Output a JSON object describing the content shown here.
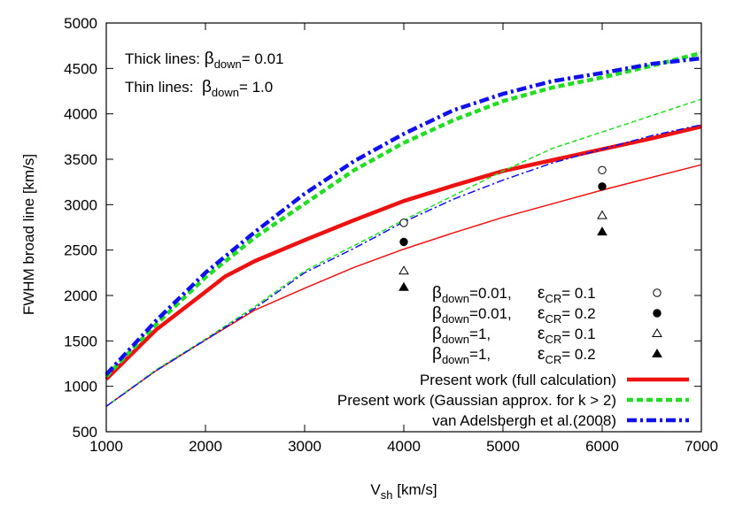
{
  "chart_data": {
    "type": "line",
    "xlabel_main": "V",
    "xlabel_sub": "sh",
    "xlabel_rest": " [km/s]",
    "ylabel": "FWHM broad line  [km/s]",
    "xlim": [
      1000,
      7000
    ],
    "ylim": [
      500,
      5000
    ],
    "xticks": [
      "1000",
      "2000",
      "3000",
      "4000",
      "5000",
      "6000",
      "7000"
    ],
    "yticks": [
      "500",
      "1000",
      "1500",
      "2000",
      "2500",
      "3000",
      "3500",
      "4000",
      "4500",
      "5000"
    ],
    "grid": false,
    "legend_position": "bottom-right",
    "annotations": {
      "thick_prefix": "Thick lines: ",
      "thin_prefix": "Thin lines:  ",
      "beta": "β",
      "down": "down",
      "thick_value": "= 0.01",
      "thin_value": "= 1.0"
    },
    "series": [
      {
        "name": "Present work (full calculation)",
        "color": "#ee1111",
        "style": "solid",
        "weight": "thick",
        "x": [
          1000,
          1500,
          2000,
          2200,
          2500,
          3000,
          3500,
          4000,
          4500,
          5000,
          5500,
          6000,
          6500,
          7000
        ],
        "y": [
          1080,
          1620,
          2040,
          2210,
          2380,
          2610,
          2830,
          3040,
          3210,
          3370,
          3490,
          3610,
          3730,
          3860
        ]
      },
      {
        "name": "Present work (Gaussian approx. for k > 2)",
        "color": "#22dd22",
        "style": "dashed",
        "weight": "thick",
        "x": [
          1000,
          1500,
          2000,
          2500,
          3000,
          3500,
          4000,
          4500,
          5000,
          5500,
          6000,
          6500,
          7000
        ],
        "y": [
          1110,
          1680,
          2200,
          2640,
          3010,
          3380,
          3680,
          3930,
          4140,
          4290,
          4400,
          4530,
          4670
        ]
      },
      {
        "name": "van Adelsbergh et al.(2008)",
        "color": "#1111ee",
        "style": "dashdot",
        "weight": "thick",
        "x": [
          1000,
          1500,
          2000,
          2500,
          3000,
          3500,
          4000,
          4500,
          5000,
          5500,
          6000,
          6500,
          7000
        ],
        "y": [
          1130,
          1720,
          2250,
          2700,
          3120,
          3480,
          3780,
          4040,
          4220,
          4360,
          4450,
          4550,
          4610
        ]
      },
      {
        "name": "",
        "color": "#ee1111",
        "style": "solid",
        "weight": "thin",
        "x": [
          1000,
          1500,
          2000,
          2500,
          3000,
          3500,
          4000,
          4500,
          5000,
          5500,
          6000,
          6500,
          7000
        ],
        "y": [
          780,
          1170,
          1510,
          1840,
          2080,
          2310,
          2510,
          2690,
          2860,
          3010,
          3160,
          3300,
          3440
        ]
      },
      {
        "name": "",
        "color": "#22dd22",
        "style": "dashed",
        "weight": "thin",
        "x": [
          1000,
          1500,
          2000,
          2500,
          3000,
          3500,
          4000,
          4500,
          5000,
          5500,
          6000,
          6500,
          7000
        ],
        "y": [
          780,
          1180,
          1520,
          1880,
          2270,
          2550,
          2830,
          3100,
          3370,
          3620,
          3800,
          3980,
          4160
        ]
      },
      {
        "name": "",
        "color": "#1111ee",
        "style": "dashdot",
        "weight": "thin",
        "x": [
          1000,
          1500,
          2000,
          2500,
          3000,
          3500,
          4000,
          4500,
          5000,
          5500,
          6000,
          6500,
          7000
        ],
        "y": [
          780,
          1170,
          1510,
          1860,
          2250,
          2520,
          2810,
          3060,
          3270,
          3460,
          3610,
          3760,
          3880
        ]
      }
    ],
    "points": [
      {
        "marker": "circle-open",
        "x": [
          4000,
          6000
        ],
        "y": [
          2800,
          3380
        ]
      },
      {
        "marker": "circle-filled",
        "x": [
          4000,
          6000
        ],
        "y": [
          2590,
          3200
        ]
      },
      {
        "marker": "triangle-open",
        "x": [
          4000,
          6000
        ],
        "y": [
          2270,
          2880
        ]
      },
      {
        "marker": "triangle-filled",
        "x": [
          4000,
          6000
        ],
        "y": [
          2090,
          2700
        ]
      }
    ],
    "point_legend": [
      {
        "beta_label": "=0.01,",
        "eps_label": "= 0.1",
        "marker": "circle-open"
      },
      {
        "beta_label": "=0.01,",
        "eps_label": "= 0.2",
        "marker": "circle-filled"
      },
      {
        "beta_label": "=1,",
        "eps_label": "= 0.1",
        "marker": "triangle-open"
      },
      {
        "beta_label": "=1,",
        "eps_label": "= 0.2",
        "marker": "triangle-filled"
      }
    ],
    "point_legend_symbols": {
      "beta": "β",
      "down": "down",
      "epsilon": "ε",
      "cr": "CR"
    }
  }
}
